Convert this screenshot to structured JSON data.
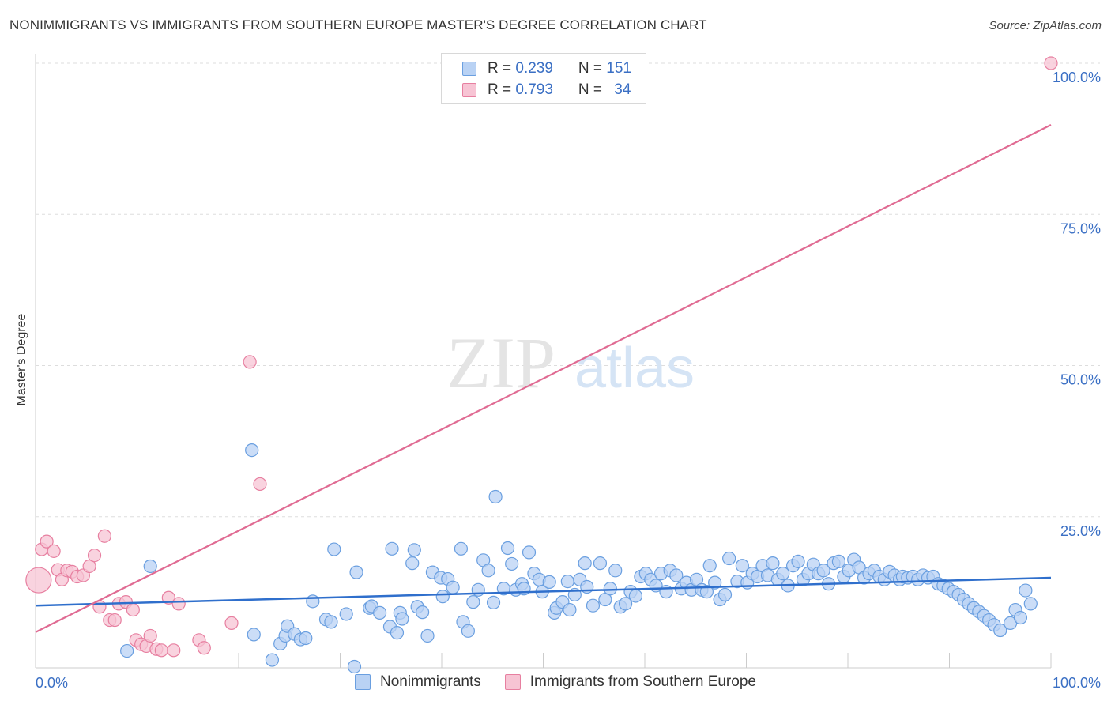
{
  "title": "NONIMMIGRANTS VS IMMIGRANTS FROM SOUTHERN EUROPE MASTER'S DEGREE CORRELATION CHART",
  "source": "Source: ZipAtlas.com",
  "watermark": {
    "zip": "ZIP",
    "atlas": "atlas"
  },
  "legend": {
    "rows": [
      {
        "r_label": "R = ",
        "r_value": "0.239",
        "n_label": "N = ",
        "n_value": "151"
      },
      {
        "r_label": "R = ",
        "r_value": "0.793",
        "n_label": "N = ",
        "n_value": "34"
      }
    ]
  },
  "colors": {
    "nonimmigrants": "#6a9fe0",
    "nonimmigrants_fill": "#b9d2f4",
    "immigrants": "#e77fa0",
    "immigrants_fill": "#f7c4d4",
    "blue_line": "#2f6fcc",
    "pink_line": "#e06b93",
    "tick_label": "#3a6fc4"
  },
  "chart_data": {
    "type": "scatter",
    "title": "NONIMMIGRANTS VS IMMIGRANTS FROM SOUTHERN EUROPE MASTER'S DEGREE CORRELATION CHART",
    "xlabel": "",
    "ylabel": "Master's Degree",
    "xlim": [
      0,
      100
    ],
    "ylim": [
      0,
      100
    ],
    "x_tick_labels": [
      "0.0%",
      "100.0%"
    ],
    "y_tick_labels": [
      "25.0%",
      "50.0%",
      "75.0%",
      "100.0%"
    ],
    "y_ticks": [
      25,
      50,
      75,
      100
    ],
    "grid": true,
    "legend_position": "top-center",
    "series": [
      {
        "name": "Nonimmigrants",
        "color": "#6a9fe0",
        "trend": {
          "x": [
            0,
            100
          ],
          "y": [
            10.3,
            14.9
          ]
        },
        "points": [
          [
            9,
            2.8
          ],
          [
            11.3,
            16.8
          ],
          [
            21.3,
            36
          ],
          [
            21.5,
            5.5
          ],
          [
            23.3,
            1.3
          ],
          [
            24.1,
            4
          ],
          [
            24.6,
            5.3
          ],
          [
            24.8,
            6.9
          ],
          [
            25.5,
            5.6
          ],
          [
            26.1,
            4.7
          ],
          [
            26.6,
            4.9
          ],
          [
            27.3,
            11
          ],
          [
            28.6,
            8
          ],
          [
            29.1,
            7.6
          ],
          [
            29.4,
            19.6
          ],
          [
            30.6,
            8.9
          ],
          [
            31.4,
            0.2
          ],
          [
            31.6,
            15.8
          ],
          [
            32.9,
            9.9
          ],
          [
            33.1,
            10.2
          ],
          [
            33.9,
            9.1
          ],
          [
            34.9,
            6.8
          ],
          [
            35.1,
            19.7
          ],
          [
            35.6,
            5.8
          ],
          [
            35.9,
            9.1
          ],
          [
            36.1,
            8.1
          ],
          [
            37.1,
            17.3
          ],
          [
            37.3,
            19.5
          ],
          [
            37.6,
            10.1
          ],
          [
            38.1,
            9.2
          ],
          [
            38.6,
            5.3
          ],
          [
            39.1,
            15.8
          ],
          [
            39.9,
            14.9
          ],
          [
            40.1,
            11.8
          ],
          [
            40.6,
            14.7
          ],
          [
            41.1,
            13.3
          ],
          [
            41.9,
            19.7
          ],
          [
            42.1,
            7.6
          ],
          [
            42.6,
            6.1
          ],
          [
            43.1,
            10.9
          ],
          [
            43.6,
            12.9
          ],
          [
            44.1,
            17.8
          ],
          [
            44.6,
            16.1
          ],
          [
            45.1,
            10.8
          ],
          [
            45.3,
            28.3
          ],
          [
            46.1,
            13.1
          ],
          [
            46.5,
            19.8
          ],
          [
            46.9,
            17.2
          ],
          [
            47.3,
            12.9
          ],
          [
            47.9,
            13.9
          ],
          [
            48.1,
            13.1
          ],
          [
            48.6,
            19.1
          ],
          [
            49.1,
            15.6
          ],
          [
            49.6,
            14.6
          ],
          [
            49.9,
            12.6
          ],
          [
            50.6,
            14.2
          ],
          [
            51.1,
            9.1
          ],
          [
            51.3,
            9.9
          ],
          [
            51.9,
            10.9
          ],
          [
            52.4,
            14.3
          ],
          [
            52.6,
            9.6
          ],
          [
            53.1,
            12.1
          ],
          [
            53.6,
            14.6
          ],
          [
            54.1,
            17.3
          ],
          [
            54.3,
            13.4
          ],
          [
            54.9,
            10.3
          ],
          [
            55.6,
            17.3
          ],
          [
            56.1,
            11.3
          ],
          [
            56.6,
            13.1
          ],
          [
            57.1,
            16.1
          ],
          [
            57.6,
            10.1
          ],
          [
            58.1,
            10.6
          ],
          [
            58.6,
            12.6
          ],
          [
            59.1,
            11.9
          ],
          [
            59.6,
            15.1
          ],
          [
            60.1,
            15.6
          ],
          [
            60.6,
            14.6
          ],
          [
            61.1,
            13.6
          ],
          [
            61.6,
            15.6
          ],
          [
            62.1,
            12.6
          ],
          [
            62.5,
            16.1
          ],
          [
            63.1,
            15.3
          ],
          [
            63.6,
            13.1
          ],
          [
            64.1,
            14.1
          ],
          [
            64.6,
            12.9
          ],
          [
            65.1,
            14.6
          ],
          [
            65.6,
            12.9
          ],
          [
            66.1,
            12.6
          ],
          [
            66.4,
            16.9
          ],
          [
            66.9,
            14.1
          ],
          [
            67.4,
            11.3
          ],
          [
            67.9,
            12.1
          ],
          [
            68.3,
            18.1
          ],
          [
            69.1,
            14.3
          ],
          [
            69.6,
            16.9
          ],
          [
            70.1,
            14.1
          ],
          [
            70.6,
            15.6
          ],
          [
            71.1,
            15.1
          ],
          [
            71.6,
            16.9
          ],
          [
            72.1,
            15.3
          ],
          [
            72.6,
            17.3
          ],
          [
            73.1,
            14.6
          ],
          [
            73.6,
            15.6
          ],
          [
            74.1,
            13.6
          ],
          [
            74.6,
            16.9
          ],
          [
            75.1,
            17.6
          ],
          [
            75.6,
            14.6
          ],
          [
            76.1,
            15.6
          ],
          [
            76.6,
            17.1
          ],
          [
            77.1,
            15.6
          ],
          [
            77.6,
            16.1
          ],
          [
            78.1,
            13.9
          ],
          [
            78.6,
            17.3
          ],
          [
            79.1,
            17.6
          ],
          [
            79.6,
            15.1
          ],
          [
            80.1,
            16.1
          ],
          [
            80.6,
            17.9
          ],
          [
            81.1,
            16.6
          ],
          [
            81.6,
            14.9
          ],
          [
            82.1,
            15.6
          ],
          [
            82.6,
            16.1
          ],
          [
            83.1,
            15.1
          ],
          [
            83.6,
            14.6
          ],
          [
            84.1,
            15.9
          ],
          [
            84.6,
            15.3
          ],
          [
            85.1,
            14.6
          ],
          [
            85.4,
            15.1
          ],
          [
            85.9,
            14.9
          ],
          [
            86.4,
            15.1
          ],
          [
            86.9,
            14.6
          ],
          [
            87.4,
            15.3
          ],
          [
            87.9,
            14.9
          ],
          [
            88.4,
            15.1
          ],
          [
            88.9,
            13.9
          ],
          [
            89.4,
            13.6
          ],
          [
            89.9,
            13.1
          ],
          [
            90.4,
            12.6
          ],
          [
            90.9,
            12.1
          ],
          [
            91.4,
            11.3
          ],
          [
            91.9,
            10.6
          ],
          [
            92.4,
            9.9
          ],
          [
            92.9,
            9.3
          ],
          [
            93.4,
            8.6
          ],
          [
            93.9,
            7.9
          ],
          [
            94.4,
            7.1
          ],
          [
            95,
            6.2
          ],
          [
            96,
            7.4
          ],
          [
            96.5,
            9.6
          ],
          [
            97,
            8.3
          ],
          [
            97.5,
            12.8
          ],
          [
            98,
            10.6
          ]
        ]
      },
      {
        "name": "Immigrants from Southern Europe",
        "color": "#e77fa0",
        "trend": {
          "x": [
            0,
            100
          ],
          "y": [
            5.9,
            89.8
          ]
        },
        "points": [
          [
            0.3,
            14.5
          ],
          [
            0.6,
            19.6
          ],
          [
            1.1,
            20.9
          ],
          [
            1.8,
            19.3
          ],
          [
            2.2,
            16.2
          ],
          [
            2.6,
            14.6
          ],
          [
            3.1,
            16.1
          ],
          [
            3.6,
            15.9
          ],
          [
            4.1,
            15.1
          ],
          [
            4.7,
            15.3
          ],
          [
            5.3,
            16.8
          ],
          [
            5.8,
            18.6
          ],
          [
            6.3,
            10.1
          ],
          [
            6.8,
            21.8
          ],
          [
            7.3,
            7.9
          ],
          [
            7.8,
            7.9
          ],
          [
            8.2,
            10.6
          ],
          [
            8.9,
            10.9
          ],
          [
            9.6,
            9.6
          ],
          [
            9.9,
            4.6
          ],
          [
            10.4,
            3.9
          ],
          [
            10.9,
            3.6
          ],
          [
            11.3,
            5.3
          ],
          [
            11.9,
            3.1
          ],
          [
            12.4,
            2.9
          ],
          [
            13.1,
            11.6
          ],
          [
            13.6,
            2.9
          ],
          [
            14.1,
            10.6
          ],
          [
            16.1,
            4.6
          ],
          [
            16.6,
            3.3
          ],
          [
            19.3,
            7.4
          ],
          [
            21.1,
            50.6
          ],
          [
            22.1,
            30.4
          ],
          [
            100,
            100
          ]
        ]
      }
    ]
  }
}
